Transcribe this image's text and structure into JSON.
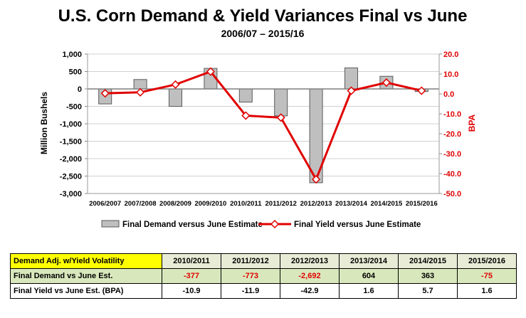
{
  "chart_data": {
    "type": "bar+line",
    "title": "U.S. Corn Demand & Yield Variances Final vs June",
    "subtitle": "2006/07 – 2015/16",
    "categories": [
      "2006/2007",
      "2007/2008",
      "2008/2009",
      "2009/2010",
      "2010/2011",
      "2011/2012",
      "2012/2013",
      "2013/2014",
      "2014/2015",
      "2015/2016"
    ],
    "series": [
      {
        "name": "Final Demand versus June Estimate",
        "type": "bar",
        "axis": "left",
        "values": [
          -430,
          270,
          -500,
          590,
          -377,
          -773,
          -2692,
          604,
          363,
          -75
        ]
      },
      {
        "name": "Final Yield versus June Estimate",
        "type": "line",
        "axis": "right",
        "values": [
          0.3,
          0.8,
          4.7,
          11.2,
          -10.9,
          -11.9,
          -42.9,
          1.6,
          5.7,
          1.6
        ]
      }
    ],
    "y_left": {
      "label": "Million Bushels",
      "ylim": [
        -3000,
        1000
      ],
      "ticks": [
        1000,
        500,
        0,
        -500,
        -1000,
        -1500,
        -2000,
        -2500,
        -3000
      ],
      "tick_labels": [
        "1,000",
        "500",
        "0",
        "-500",
        "-1,000",
        "-1,500",
        "-2,000",
        "-2,500",
        "-3,000"
      ]
    },
    "y_right": {
      "label": "BPA",
      "ylim": [
        -50,
        20
      ],
      "ticks": [
        20,
        10,
        0,
        -10,
        -20,
        -30,
        -40,
        -50
      ],
      "tick_labels": [
        "20.0",
        "10.0",
        "0.0",
        "-10.0",
        "-20.0",
        "-30.0",
        "-40.0",
        "-50.0"
      ]
    },
    "colors": {
      "bar_fill": "#bfbfbf",
      "bar_stroke": "#5a5a5a",
      "line": "#e00000",
      "marker_fill": "#ffffff",
      "axis_right_text": "#e00000"
    },
    "legend_position": "bottom"
  },
  "table": {
    "header_label": "Demand Adj. w/Yield Volatility",
    "years": [
      "2010/2011",
      "2011/2012",
      "2012/2013",
      "2013/2014",
      "2014/2015",
      "2015/2016"
    ],
    "rows": [
      {
        "label": "Final Demand vs June Est.",
        "values": [
          "-377",
          "-773",
          "-2,692",
          "604",
          "363",
          "-75"
        ]
      },
      {
        "label": "Final Yield vs June Est. (BPA)",
        "values": [
          "-10.9",
          "-11.9",
          "-42.9",
          "1.6",
          "5.7",
          "1.6"
        ]
      }
    ]
  }
}
